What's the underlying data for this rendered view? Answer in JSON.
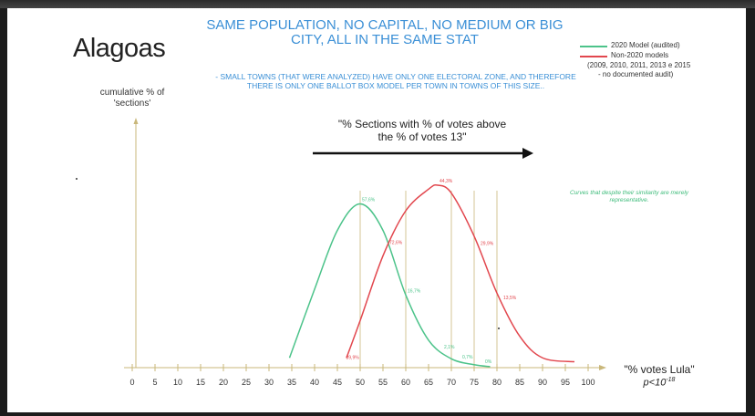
{
  "slide": {
    "state": "Alagoas",
    "headline": "SAME POPULATION, NO CAPITAL, NO MEDIUM OR BIG CITY, ALL IN THE SAME STAT",
    "note": "- SMALL TOWNS (THAT WERE ANALYZED) HAVE ONLY ONE ELECTORAL ZONE, AND THEREFORE THERE IS ONLY ONE BALLOT BOX MODEL PER TOWN IN TOWNS OF THIS SIZE..",
    "arrow_label": "\"% Sections with % of votes above the % of votes 13\"",
    "curve_note": "Curves that despite their similarity are merely representative.",
    "pvalue_base": "p<10",
    "pvalue_exp": "-18"
  },
  "chart_data": {
    "type": "line",
    "title": "",
    "xlabel": "\"% votes Lula\"",
    "ylabel": "cumulative % of 'sections'",
    "xlim": [
      0,
      100
    ],
    "xticks": [
      0,
      5,
      10,
      15,
      20,
      25,
      30,
      35,
      40,
      45,
      50,
      55,
      60,
      65,
      70,
      75,
      80,
      85,
      90,
      95,
      100
    ],
    "grid": false,
    "legend_position": "top-right",
    "series": [
      {
        "name": "2020 Model (audited)",
        "color": "#4cc38a",
        "x": [
          34.5,
          40,
          45,
          50,
          55,
          60,
          65,
          70,
          75,
          78.5
        ],
        "y": [
          5.0,
          40.0,
          70.0,
          83.5,
          70.0,
          37.0,
          14.0,
          4.5,
          1.5,
          0.5
        ],
        "point_labels": [
          {
            "x": 50,
            "label": "57,6%"
          },
          {
            "x": 60,
            "label": "16,7%"
          },
          {
            "x": 68,
            "label": "2,1%"
          },
          {
            "x": 72,
            "label": "0,7%"
          },
          {
            "x": 77,
            "label": "0%"
          }
        ]
      },
      {
        "name": "Non-2020 models",
        "name_detail": [
          "(2009, 2010, 2011, 2013 e 2015",
          "- no documented audit)"
        ],
        "color": "#e2474e",
        "x": [
          47,
          50,
          55,
          60,
          65,
          67,
          70,
          75,
          80,
          85,
          90,
          97
        ],
        "y": [
          5.0,
          24.0,
          57.0,
          80.0,
          91.0,
          93.0,
          89.0,
          67.0,
          38.0,
          16.0,
          5.0,
          3.0
        ],
        "point_labels": [
          {
            "x": 46.5,
            "label": "89,9%"
          },
          {
            "x": 56,
            "label": "72,6%"
          },
          {
            "x": 67,
            "label": "44,3%"
          },
          {
            "x": 76,
            "label": "29,9%"
          },
          {
            "x": 81,
            "label": "13,5%"
          }
        ]
      }
    ],
    "reference_lines_x": [
      50,
      60,
      70,
      75,
      80
    ]
  }
}
